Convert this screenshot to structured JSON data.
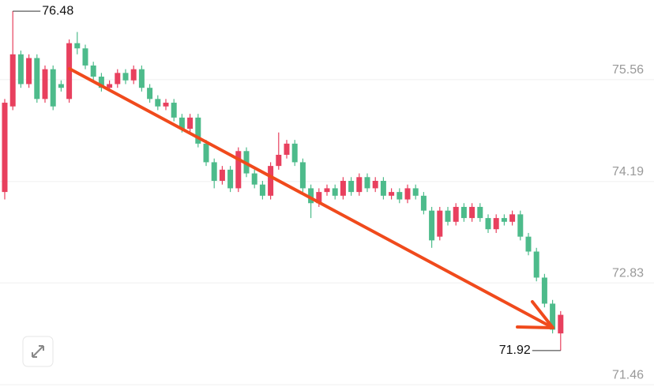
{
  "chart_data": {
    "type": "candlestick",
    "up_color": "#e8405e",
    "down_color": "#4dbb8b",
    "open": [
      74.05,
      75.2,
      75.9,
      75.5,
      75.85,
      75.3,
      75.7,
      75.5,
      75.3,
      76.05,
      75.98,
      75.75,
      75.6,
      75.45,
      75.5,
      75.65,
      75.55,
      75.7,
      75.45,
      75.3,
      75.2,
      75.25,
      75.05,
      74.9,
      75.05,
      74.7,
      74.45,
      74.2,
      74.35,
      74.1,
      74.6,
      74.3,
      74.15,
      74.0,
      74.4,
      74.55,
      74.7,
      74.45,
      74.1,
      73.9,
      74.05,
      74.1,
      74.0,
      74.2,
      74.05,
      74.25,
      74.1,
      74.2,
      74.0,
      74.05,
      73.95,
      74.1,
      74.0,
      73.8,
      73.45,
      73.8,
      73.65,
      73.85,
      73.7,
      73.85,
      73.7,
      73.55,
      73.7,
      73.65,
      73.75,
      73.45,
      73.25,
      72.9,
      72.55,
      72.15
    ],
    "high": [
      75.3,
      76.48,
      75.95,
      75.9,
      75.9,
      75.75,
      75.75,
      75.55,
      76.1,
      76.2,
      76.03,
      75.8,
      75.65,
      75.55,
      75.7,
      75.7,
      75.75,
      75.75,
      75.5,
      75.35,
      75.3,
      75.3,
      75.1,
      75.1,
      75.1,
      74.75,
      74.5,
      74.4,
      74.4,
      74.65,
      74.65,
      74.35,
      74.2,
      74.45,
      74.85,
      74.75,
      74.75,
      74.5,
      74.15,
      74.1,
      74.15,
      74.15,
      74.25,
      74.25,
      74.3,
      74.3,
      74.25,
      74.25,
      74.1,
      74.1,
      74.15,
      74.15,
      74.05,
      73.85,
      73.85,
      73.85,
      73.9,
      73.9,
      73.9,
      73.9,
      73.75,
      73.75,
      73.75,
      73.8,
      73.8,
      73.5,
      73.3,
      72.95,
      72.6,
      72.45
    ],
    "low": [
      73.95,
      75.15,
      75.45,
      75.45,
      75.25,
      75.25,
      75.15,
      75.4,
      75.25,
      75.9,
      75.7,
      75.55,
      75.4,
      75.4,
      75.45,
      75.5,
      75.5,
      75.4,
      75.25,
      75.15,
      75.15,
      75.0,
      74.85,
      74.85,
      74.65,
      74.4,
      74.1,
      74.15,
      74.05,
      74.05,
      74.25,
      74.1,
      73.95,
      73.95,
      74.35,
      74.5,
      74.4,
      74.05,
      73.7,
      73.85,
      74.0,
      73.95,
      73.95,
      74.0,
      74.0,
      74.05,
      74.05,
      73.95,
      73.95,
      73.9,
      73.9,
      73.95,
      73.75,
      73.3,
      73.4,
      73.6,
      73.6,
      73.65,
      73.65,
      73.65,
      73.5,
      73.5,
      73.6,
      73.6,
      73.4,
      73.2,
      72.85,
      72.5,
      72.15,
      71.92
    ],
    "close": [
      75.25,
      75.9,
      75.5,
      75.85,
      75.3,
      75.7,
      75.2,
      75.45,
      76.05,
      75.98,
      75.75,
      75.6,
      75.45,
      75.5,
      75.65,
      75.55,
      75.7,
      75.45,
      75.3,
      75.2,
      75.25,
      75.05,
      74.9,
      75.05,
      74.7,
      74.45,
      74.2,
      74.35,
      74.1,
      74.6,
      74.3,
      74.15,
      74.0,
      74.4,
      74.55,
      74.7,
      74.45,
      74.1,
      73.9,
      74.05,
      74.1,
      74.0,
      74.2,
      74.05,
      74.25,
      74.1,
      74.2,
      74.0,
      74.05,
      73.95,
      74.1,
      74.0,
      73.8,
      73.4,
      73.8,
      73.65,
      73.85,
      73.7,
      73.85,
      73.7,
      73.55,
      73.7,
      73.65,
      73.75,
      73.45,
      73.25,
      72.9,
      72.55,
      72.2,
      72.4
    ],
    "max": 76.48,
    "min": 71.92,
    "ylim": [
      71.43,
      76.63
    ],
    "yticks": [
      75.56,
      74.19,
      72.83,
      71.46
    ],
    "grid": true
  }
}
